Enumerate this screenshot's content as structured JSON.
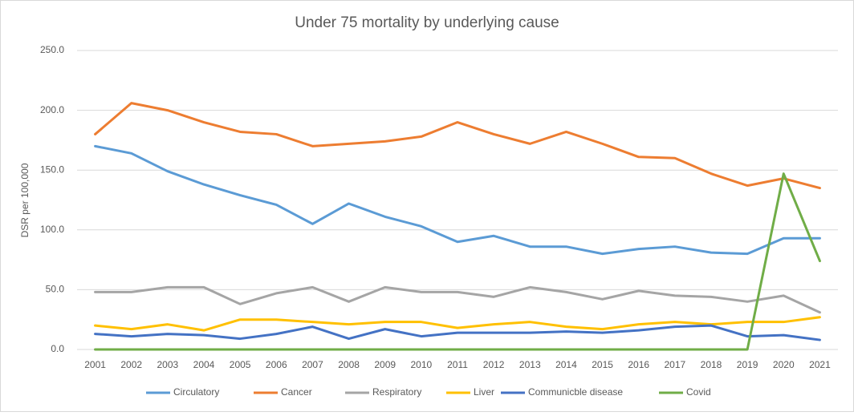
{
  "chart_data": {
    "type": "line",
    "title": "Under 75 mortality by underlying cause",
    "ylabel": "DSR per 100,000",
    "categories": [
      "2001",
      "2002",
      "2003",
      "2004",
      "2005",
      "2006",
      "2007",
      "2008",
      "2009",
      "2010",
      "2011",
      "2012",
      "2013",
      "2014",
      "2015",
      "2016",
      "2017",
      "2018",
      "2019",
      "2020",
      "2021"
    ],
    "series": [
      {
        "name": "Circulatory",
        "color": "#5b9bd5",
        "values": [
          170,
          164,
          149,
          138,
          129,
          121,
          105,
          122,
          111,
          103,
          90,
          95,
          86,
          86,
          80,
          84,
          86,
          81,
          80,
          93,
          93
        ]
      },
      {
        "name": "Cancer",
        "color": "#ed7d31",
        "values": [
          180,
          206,
          200,
          190,
          182,
          180,
          170,
          172,
          174,
          178,
          190,
          180,
          172,
          182,
          172,
          161,
          160,
          147,
          137,
          143,
          135
        ]
      },
      {
        "name": "Respiratory",
        "color": "#a5a5a5",
        "values": [
          48,
          48,
          52,
          52,
          38,
          47,
          52,
          40,
          52,
          48,
          48,
          44,
          52,
          48,
          42,
          49,
          45,
          44,
          40,
          45,
          31
        ]
      },
      {
        "name": "Liver",
        "color": "#ffc000",
        "values": [
          20,
          17,
          21,
          16,
          25,
          25,
          23,
          21,
          23,
          23,
          18,
          21,
          23,
          19,
          17,
          21,
          23,
          21,
          23,
          23,
          27
        ]
      },
      {
        "name": "Communicble disease",
        "color": "#4472c4",
        "values": [
          13,
          11,
          13,
          12,
          9,
          13,
          19,
          9,
          17,
          11,
          14,
          14,
          14,
          15,
          14,
          16,
          19,
          20,
          11,
          12,
          8
        ]
      },
      {
        "name": "Covid",
        "color": "#70ad47",
        "values": [
          0,
          0,
          0,
          0,
          0,
          0,
          0,
          0,
          0,
          0,
          0,
          0,
          0,
          0,
          0,
          0,
          0,
          0,
          0,
          147,
          74
        ]
      }
    ],
    "ylim": [
      0,
      250
    ],
    "yticks": [
      {
        "value": 0,
        "label": "0.0"
      },
      {
        "value": 50,
        "label": "50.0"
      },
      {
        "value": 100,
        "label": "100.0"
      },
      {
        "value": 150,
        "label": "150.0"
      },
      {
        "value": 200,
        "label": "200.0"
      },
      {
        "value": 250,
        "label": "250.0"
      }
    ],
    "grid": true,
    "legend": "bottom"
  }
}
